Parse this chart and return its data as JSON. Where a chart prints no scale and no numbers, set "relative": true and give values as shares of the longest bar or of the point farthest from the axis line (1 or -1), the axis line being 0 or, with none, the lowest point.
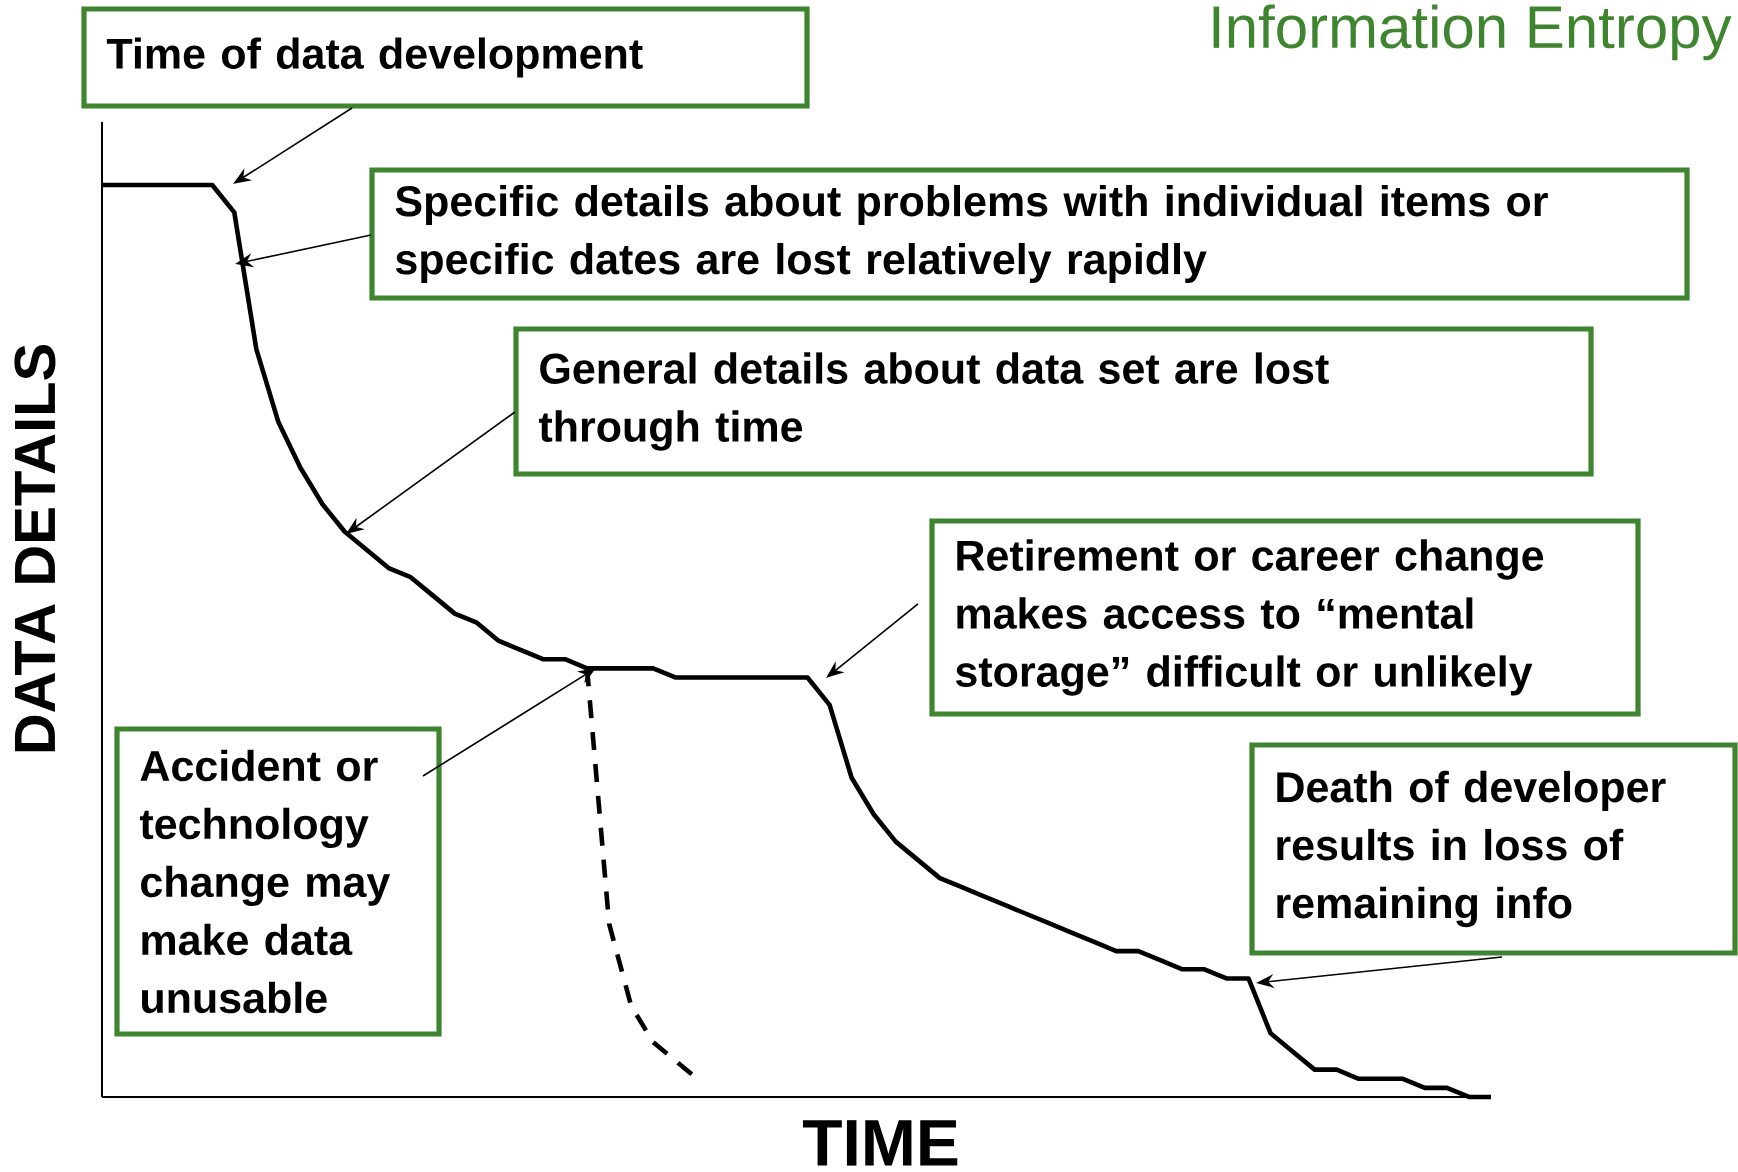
{
  "chart_data": {
    "type": "line",
    "relative": true,
    "marker": "none",
    "title": "Information Entropy",
    "xlabel": "TIME",
    "ylabel": "DATA DETAILS",
    "categories": [
      null,
      null,
      null,
      null,
      null,
      null,
      null,
      null,
      null,
      null,
      null,
      null,
      null,
      null,
      null,
      null,
      null,
      null,
      null,
      null,
      null,
      null,
      null,
      null,
      null,
      null,
      null,
      null,
      null,
      null,
      null,
      null,
      null,
      null,
      null,
      null,
      null,
      null,
      null,
      null,
      null,
      null,
      null,
      null,
      null,
      null,
      null,
      null,
      null,
      null,
      null,
      null,
      null,
      null,
      null,
      null,
      null,
      null,
      null,
      null,
      null,
      null,
      null,
      null
    ],
    "series": [
      {
        "color": "#000000",
        "line_style": "solid",
        "values": [
          1.0,
          1.0,
          1.0,
          1.0,
          1.0,
          1.0,
          0.97,
          0.82,
          0.74,
          0.69,
          0.65,
          0.62,
          0.6,
          0.58,
          0.57,
          0.55,
          0.53,
          0.52,
          0.5,
          0.49,
          0.48,
          0.48,
          0.47,
          0.47,
          0.47,
          0.47,
          0.46,
          0.46,
          0.46,
          0.46,
          0.46,
          0.46,
          0.46,
          0.43,
          0.35,
          0.31,
          0.28,
          0.26,
          0.24,
          0.23,
          0.22,
          0.21,
          0.2,
          0.19,
          0.18,
          0.17,
          0.16,
          0.16,
          0.15,
          0.14,
          0.14,
          0.13,
          0.13,
          0.07,
          0.05,
          0.03,
          0.03,
          0.02,
          0.02,
          0.02,
          0.01,
          0.01,
          0.0,
          0.0
        ]
      },
      {
        "color": "#000000",
        "line_style": "dashed",
        "values": [
          null,
          null,
          null,
          null,
          null,
          null,
          null,
          null,
          null,
          null,
          null,
          null,
          null,
          null,
          null,
          null,
          null,
          null,
          null,
          null,
          null,
          null,
          0.47,
          0.19,
          0.1,
          0.06,
          0.04,
          0.02,
          null,
          null,
          null,
          null,
          null,
          null,
          null,
          null,
          null,
          null,
          null,
          null,
          null,
          null,
          null,
          null,
          null,
          null,
          null,
          null,
          null,
          null,
          null,
          null,
          null,
          null,
          null,
          null,
          null,
          null,
          null,
          null,
          null,
          null,
          null,
          null
        ]
      }
    ],
    "annotations": [
      "Time of data development",
      "Specific details about problems with individual items or specific dates are lost relatively rapidly",
      "General details about data set are lost through time",
      "Accident or technology change may make data unusable",
      "Retirement or career change makes access to “mental storage” difficult or unlikely",
      "Death of developer results in loss of remaining info"
    ]
  }
}
